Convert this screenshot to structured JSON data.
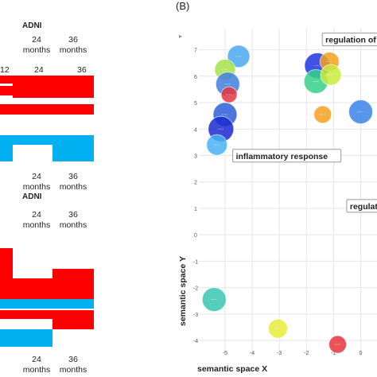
{
  "panel_a": {
    "top": {
      "title": "ADNI",
      "num_ticks": [
        "12",
        "24",
        "36"
      ],
      "month_ticks": [
        {
          "num": "24",
          "unit": "months"
        },
        {
          "num": "36",
          "unit": "months"
        }
      ],
      "bottom_ticks": [
        {
          "num": "24",
          "unit": "months"
        },
        {
          "num": "36",
          "unit": "months"
        }
      ]
    },
    "bottom": {
      "title": "ADNI",
      "month_ticks": [
        {
          "num": "24",
          "unit": "months"
        },
        {
          "num": "36",
          "unit": "months"
        }
      ],
      "bottom_ticks": [
        {
          "num": "24",
          "unit": "months"
        },
        {
          "num": "36",
          "unit": "months"
        }
      ]
    },
    "colors": {
      "up": "#ff0000",
      "down": "#00b0f0"
    }
  },
  "panel_b": {
    "label": "(B)",
    "menu_glyph": "▸"
  },
  "chart_data": {
    "type": "scatter",
    "title": "",
    "xlabel": "semantic space X",
    "ylabel": "semantic space Y",
    "xlim": [
      -6.2,
      0.6
    ],
    "ylim": [
      -4.6,
      7.8
    ],
    "x_ticks": [
      "-5",
      "-4",
      "-3",
      "-2",
      "-1",
      "0"
    ],
    "y_ticks": [
      "-4",
      "-3",
      "-2",
      "-1",
      "0",
      "1",
      "2",
      "3",
      "4",
      "5",
      "6",
      "7"
    ],
    "grid": true,
    "annotations": [
      {
        "text": "regulation of natural kil",
        "x": -1.3,
        "y": 7.3
      },
      {
        "text": "inflammatory response",
        "x": -4.6,
        "y": 2.9
      },
      {
        "text": "regulation o",
        "x": -0.4,
        "y": 1.0
      }
    ],
    "points": [
      {
        "x": -4.5,
        "y": 6.75,
        "r": 14,
        "color": "#4aa8f0"
      },
      {
        "x": -5.0,
        "y": 6.25,
        "r": 13,
        "color": "#a8e04a"
      },
      {
        "x": -4.9,
        "y": 5.7,
        "r": 15,
        "color": "#3f7fdc"
      },
      {
        "x": -4.85,
        "y": 5.3,
        "r": 10,
        "color": "#e8343c"
      },
      {
        "x": -5.0,
        "y": 4.55,
        "r": 15,
        "color": "#2e5fd8"
      },
      {
        "x": -5.15,
        "y": 4.0,
        "r": 16,
        "color": "#1a2ad0"
      },
      {
        "x": -5.3,
        "y": 3.4,
        "r": 13,
        "color": "#49b2f5"
      },
      {
        "x": -1.6,
        "y": 6.4,
        "r": 16,
        "color": "#1f35e0"
      },
      {
        "x": -1.15,
        "y": 6.55,
        "r": 12,
        "color": "#f4a020"
      },
      {
        "x": -1.65,
        "y": 5.8,
        "r": 15,
        "color": "#37d08a"
      },
      {
        "x": -1.1,
        "y": 6.05,
        "r": 13,
        "color": "#c8ec3c"
      },
      {
        "x": -1.4,
        "y": 4.55,
        "r": 11,
        "color": "#f4a020"
      },
      {
        "x": 0.0,
        "y": 4.65,
        "r": 15,
        "color": "#3a84e8"
      },
      {
        "x": -5.4,
        "y": -2.45,
        "r": 15,
        "color": "#37c7b0"
      },
      {
        "x": -3.05,
        "y": -3.55,
        "r": 12,
        "color": "#e6ec3a"
      },
      {
        "x": -0.85,
        "y": -4.15,
        "r": 11,
        "color": "#e8343c"
      }
    ]
  }
}
